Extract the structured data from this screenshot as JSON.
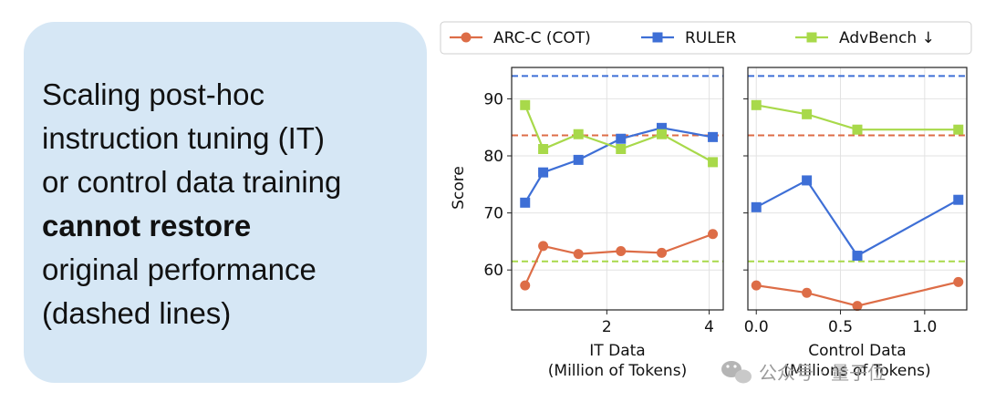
{
  "callout": {
    "lines": [
      "Scaling post-hoc",
      "instruction tuning (IT)",
      "or control data training",
      "cannot restore",
      "original performance",
      "(dashed lines)"
    ]
  },
  "watermark": {
    "text": "公众号 · 量子位",
    "icon": "wechat-icon"
  },
  "chart_data": [
    {
      "type": "line",
      "ylabel": "Score",
      "xlabel": "IT Data",
      "xlabel_sub": "(Million of Tokens)",
      "xscale": "log",
      "xlim": [
        1.05,
        4.4
      ],
      "ylim": [
        53,
        95.5
      ],
      "xticks": [
        2,
        4
      ],
      "yticks": [
        60,
        70,
        80,
        90
      ],
      "grid": true,
      "series": [
        {
          "name": "ARC-C (COT)",
          "color": "#dd6d47",
          "marker": "circle",
          "x": [
            1.15,
            1.3,
            1.65,
            2.2,
            2.9,
            4.1
          ],
          "y": [
            57.3,
            64.2,
            62.8,
            63.3,
            63.0,
            66.3
          ],
          "baseline": 83.6
        },
        {
          "name": "RULER",
          "color": "#3e6fd6",
          "marker": "square",
          "x": [
            1.15,
            1.3,
            1.65,
            2.2,
            2.9,
            4.1
          ],
          "y": [
            71.8,
            77.1,
            79.3,
            83.0,
            84.9,
            83.3
          ],
          "baseline": 94.0
        },
        {
          "name": "AdvBench ↓",
          "color": "#a8d94a",
          "marker": "square",
          "x": [
            1.15,
            1.3,
            1.65,
            2.2,
            2.9,
            4.1
          ],
          "y": [
            88.9,
            81.2,
            83.8,
            81.2,
            83.8,
            78.9
          ],
          "baseline": 61.5
        }
      ]
    },
    {
      "type": "line",
      "xlabel": "Control Data",
      "xlabel_sub": "(Millions of Tokens)",
      "xscale": "linear",
      "xlim": [
        -0.05,
        1.25
      ],
      "ylim": [
        53,
        95.5
      ],
      "xticks": [
        0.0,
        0.5,
        1.0
      ],
      "xticklabels": [
        "0.0",
        "0.5",
        "1.0"
      ],
      "yticks": [
        60,
        70,
        80,
        90
      ],
      "grid": true,
      "series": [
        {
          "name": "ARC-C (COT)",
          "color": "#dd6d47",
          "marker": "circle",
          "x": [
            0.0,
            0.3,
            0.6,
            1.2
          ],
          "y": [
            57.3,
            56.0,
            53.7,
            57.9
          ],
          "baseline": 83.6
        },
        {
          "name": "RULER",
          "color": "#3e6fd6",
          "marker": "square",
          "x": [
            0.0,
            0.3,
            0.6,
            1.2
          ],
          "y": [
            71.0,
            75.7,
            62.5,
            72.3
          ],
          "baseline": 94.0
        },
        {
          "name": "AdvBench ↓",
          "color": "#a8d94a",
          "marker": "square",
          "x": [
            0.0,
            0.3,
            0.6,
            1.2
          ],
          "y": [
            88.9,
            87.3,
            84.6,
            84.6
          ],
          "baseline": 61.5
        }
      ]
    }
  ],
  "legend": {
    "placement": "top",
    "items": [
      {
        "label": "ARC-C (COT)",
        "color": "#dd6d47",
        "marker": "circle"
      },
      {
        "label": "RULER",
        "color": "#3e6fd6",
        "marker": "square"
      },
      {
        "label": "AdvBench ↓",
        "color": "#a8d94a",
        "marker": "square"
      }
    ]
  }
}
